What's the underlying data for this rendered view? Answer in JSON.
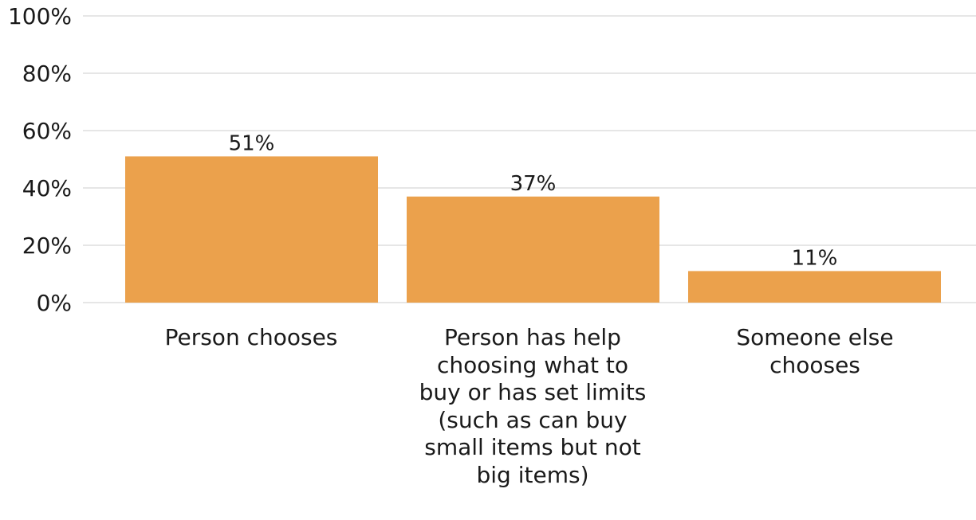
{
  "chart_data": {
    "type": "bar",
    "title": "",
    "xlabel": "",
    "ylabel": "",
    "categories": [
      "Person chooses",
      "Person has help choosing what to buy or has set limits (such as can buy small items but not big items)",
      "Someone else chooses"
    ],
    "values": [
      51,
      37,
      11
    ],
    "value_labels": [
      "51%",
      "37%",
      "11%"
    ],
    "ylim": [
      0,
      100
    ],
    "yticks": [
      0,
      20,
      40,
      60,
      80,
      100
    ],
    "ytick_labels": [
      "0%",
      "20%",
      "40%",
      "60%",
      "80%",
      "100%"
    ],
    "grid": true,
    "legend": "none",
    "colors": {
      "bar": "#eba14c",
      "grid": "#e6e6e6",
      "text": "#1a1a1a"
    }
  }
}
